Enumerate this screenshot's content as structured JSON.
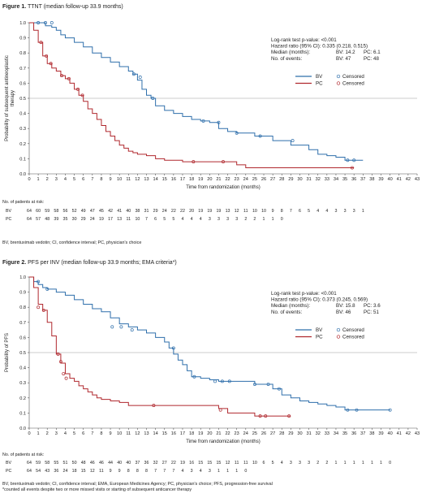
{
  "colors": {
    "BV": "#2f6fab",
    "PC": "#b0282e"
  },
  "chart_data": [
    {
      "type": "line",
      "figure_label": "Figure 1.",
      "title": " TTNT (median follow-up 33.9 months)",
      "xlabel": "Time from randomization (months)",
      "ylabel_lines": [
        "Probability of subsequent antineoplastic",
        "therapy"
      ],
      "xlim": [
        0,
        43
      ],
      "ylim": [
        0,
        1.0
      ],
      "x_ticks": [
        0,
        1,
        2,
        3,
        4,
        5,
        6,
        7,
        8,
        9,
        10,
        11,
        12,
        13,
        14,
        15,
        16,
        17,
        18,
        19,
        20,
        21,
        22,
        23,
        24,
        25,
        26,
        27,
        28,
        29,
        30,
        31,
        32,
        33,
        34,
        35,
        36,
        37,
        38,
        39,
        40,
        41,
        42,
        43
      ],
      "y_ticks": [
        0,
        0.1,
        0.2,
        0.3,
        0.4,
        0.5,
        0.6,
        0.7,
        0.8,
        0.9,
        1.0
      ],
      "reference_line_y": 0.5,
      "stats": {
        "logrank": "Log-rank test p-value: <0.001",
        "hr": "Hazard ratio (95% CI): 0.335 (0.218, 0.515)",
        "median_label": "Median (months):",
        "median_bv": "BV: 14.2",
        "median_pc": "PC: 6.1",
        "events_label": "No. of events:",
        "events_bv": "BV: 47",
        "events_pc": "PC: 48"
      },
      "legend": [
        {
          "series": "BV",
          "label": "BV",
          "censor_label": "Censored"
        },
        {
          "series": "PC",
          "label": "PC",
          "censor_label": "Censored"
        }
      ],
      "series": [
        {
          "name": "BV",
          "x": [
            0,
            1,
            1.8,
            2.5,
            3,
            3.5,
            4,
            5,
            6,
            7,
            8,
            9,
            10,
            11,
            11.5,
            12,
            12.5,
            13,
            13.5,
            14,
            15,
            16,
            17,
            18,
            19,
            20,
            21,
            22,
            23,
            24,
            25,
            26,
            27,
            28,
            29,
            30,
            31,
            32,
            33,
            34,
            35,
            36,
            37
          ],
          "y": [
            1.0,
            1.0,
            0.98,
            0.97,
            0.95,
            0.92,
            0.9,
            0.87,
            0.84,
            0.8,
            0.77,
            0.74,
            0.71,
            0.68,
            0.66,
            0.62,
            0.56,
            0.52,
            0.5,
            0.45,
            0.42,
            0.4,
            0.38,
            0.36,
            0.35,
            0.34,
            0.3,
            0.28,
            0.27,
            0.27,
            0.25,
            0.25,
            0.22,
            0.22,
            0.19,
            0.19,
            0.16,
            0.13,
            0.12,
            0.11,
            0.09,
            0.09,
            0.09
          ],
          "censored_x": [
            1,
            1.8,
            2.5,
            11.6,
            12.3,
            13.7,
            19.3,
            21,
            23,
            25.6,
            29.2,
            35.3,
            36
          ],
          "censored_y": [
            1.0,
            1.0,
            1.0,
            0.66,
            0.64,
            0.5,
            0.35,
            0.34,
            0.27,
            0.25,
            0.22,
            0.09,
            0.09
          ]
        },
        {
          "name": "PC",
          "x": [
            0,
            0.5,
            1,
            1.5,
            2,
            2.5,
            3,
            3.5,
            4,
            4.5,
            5,
            5.5,
            6,
            6.5,
            7,
            7.5,
            8,
            8.5,
            9,
            9.5,
            10,
            10.5,
            11,
            11.5,
            12,
            13,
            14,
            15,
            16,
            17,
            19,
            21,
            23,
            24,
            35,
            36
          ],
          "y": [
            1.0,
            0.95,
            0.87,
            0.78,
            0.73,
            0.7,
            0.68,
            0.65,
            0.63,
            0.6,
            0.56,
            0.52,
            0.48,
            0.43,
            0.4,
            0.36,
            0.32,
            0.28,
            0.25,
            0.22,
            0.19,
            0.17,
            0.15,
            0.14,
            0.13,
            0.12,
            0.1,
            0.09,
            0.09,
            0.08,
            0.08,
            0.08,
            0.06,
            0.04,
            0.04,
            0.04
          ],
          "censored_x": [
            1.3,
            1.9,
            2.4,
            3.6,
            4.4,
            5.4,
            5.9,
            18.2,
            21.5,
            35.8
          ],
          "censored_y": [
            0.87,
            0.78,
            0.73,
            0.65,
            0.63,
            0.56,
            0.52,
            0.08,
            0.08,
            0.04
          ]
        }
      ],
      "risk_table": {
        "header": "No. of patients at risk:",
        "rows": [
          {
            "label": "BV",
            "values": [
              "64",
              "60",
              "59",
              "58",
              "56",
              "52",
              "49",
              "47",
              "45",
              "42",
              "41",
              "40",
              "38",
              "31",
              "29",
              "24",
              "22",
              "22",
              "20",
              "19",
              "19",
              "19",
              "13",
              "12",
              "11",
              "10",
              "10",
              "9",
              "8",
              "7",
              "6",
              "5",
              "4",
              "4",
              "3",
              "3",
              "3",
              "1",
              ""
            ]
          },
          {
            "label": "PC",
            "values": [
              "64",
              "57",
              "48",
              "39",
              "35",
              "30",
              "29",
              "24",
              "19",
              "17",
              "13",
              "11",
              "10",
              "7",
              "6",
              "5",
              "5",
              "4",
              "4",
              "4",
              "3",
              "3",
              "3",
              "3",
              "2",
              "2",
              "1",
              "1",
              "0",
              "",
              "",
              "",
              "",
              "",
              "",
              "",
              "",
              "",
              ""
            ]
          }
        ]
      },
      "footnote_lines": [
        "BV, brentuximab vedotin; CI, confidence interval; PC, physician's choice"
      ]
    },
    {
      "type": "line",
      "figure_label": "Figure 2.",
      "title": " PFS per INV (median follow-up 33.9 months; EMA criteria*)",
      "xlabel": "Time from randomization (months)",
      "ylabel_lines": [
        "Probability of PFS"
      ],
      "xlim": [
        0,
        43
      ],
      "ylim": [
        0,
        1.0
      ],
      "x_ticks": [
        0,
        1,
        2,
        3,
        4,
        5,
        6,
        7,
        8,
        9,
        10,
        11,
        12,
        13,
        14,
        15,
        16,
        17,
        18,
        19,
        20,
        21,
        22,
        23,
        24,
        25,
        26,
        27,
        28,
        29,
        30,
        31,
        32,
        33,
        34,
        35,
        36,
        37,
        38,
        39,
        40,
        41,
        42,
        43
      ],
      "y_ticks": [
        0,
        0.1,
        0.2,
        0.3,
        0.4,
        0.5,
        0.6,
        0.7,
        0.8,
        0.9,
        1.0
      ],
      "reference_line_y": 0.5,
      "stats": {
        "logrank": "Log-rank test p-value: <0.001",
        "hr": "Hazard ratio (95% CI): 0.373 (0.245, 0.569)",
        "median_label": "Median (months):",
        "median_bv": "BV: 15.8",
        "median_pc": "PC: 3.6",
        "events_label": "No. of events:",
        "events_bv": "BV: 46",
        "events_pc": "PC: 51"
      },
      "legend": [
        {
          "series": "BV",
          "label": "BV",
          "censor_label": "Censored"
        },
        {
          "series": "PC",
          "label": "PC",
          "censor_label": "Censored"
        }
      ],
      "series": [
        {
          "name": "BV",
          "x": [
            0,
            0.5,
            1,
            1.5,
            2,
            3,
            4,
            5,
            6,
            7,
            8,
            9,
            10,
            11,
            12,
            13,
            14,
            15,
            15.5,
            16,
            16.5,
            17,
            17.5,
            18,
            19,
            20,
            21,
            22,
            25,
            27,
            28,
            29,
            30,
            31,
            32,
            33,
            34,
            35,
            36,
            40
          ],
          "y": [
            1.0,
            0.97,
            0.95,
            0.93,
            0.92,
            0.9,
            0.88,
            0.85,
            0.82,
            0.79,
            0.77,
            0.73,
            0.69,
            0.67,
            0.65,
            0.63,
            0.6,
            0.57,
            0.53,
            0.49,
            0.45,
            0.42,
            0.38,
            0.34,
            0.33,
            0.32,
            0.31,
            0.31,
            0.29,
            0.26,
            0.22,
            0.2,
            0.18,
            0.17,
            0.16,
            0.15,
            0.14,
            0.12,
            0.12,
            0.12
          ],
          "censored_x": [
            1,
            2,
            9.2,
            10.2,
            11.4,
            16,
            18.3,
            20.6,
            21.4,
            22.2,
            25,
            26.5,
            27.7,
            35.3,
            36.3,
            40
          ],
          "censored_y": [
            0.97,
            0.92,
            0.67,
            0.67,
            0.65,
            0.53,
            0.34,
            0.31,
            0.31,
            0.31,
            0.29,
            0.29,
            0.26,
            0.12,
            0.12,
            0.12
          ]
        },
        {
          "name": "PC",
          "x": [
            0,
            0.5,
            1,
            1.5,
            2,
            2.5,
            3,
            3.5,
            4,
            4.5,
            5,
            5.5,
            6,
            6.5,
            7,
            7.5,
            8,
            9,
            10,
            11,
            14,
            17,
            21,
            22,
            25,
            29
          ],
          "y": [
            1.0,
            0.93,
            0.82,
            0.78,
            0.7,
            0.61,
            0.49,
            0.43,
            0.36,
            0.33,
            0.31,
            0.28,
            0.26,
            0.24,
            0.22,
            0.2,
            0.19,
            0.18,
            0.17,
            0.15,
            0.15,
            0.15,
            0.13,
            0.1,
            0.08,
            0.08
          ],
          "censored_x": [
            1,
            1.6,
            3.2,
            3.5,
            3.8,
            4.1,
            13.8,
            21.2,
            25.6,
            26.2,
            28.8
          ],
          "censored_y": [
            0.8,
            0.78,
            0.49,
            0.44,
            0.36,
            0.33,
            0.15,
            0.12,
            0.08,
            0.08,
            0.08
          ]
        }
      ],
      "risk_table": {
        "header": "No. of patients at risk:",
        "rows": [
          {
            "label": "BV",
            "values": [
              "64",
              "59",
              "58",
              "55",
              "51",
              "50",
              "48",
              "46",
              "46",
              "44",
              "40",
              "40",
              "37",
              "36",
              "32",
              "27",
              "22",
              "19",
              "16",
              "15",
              "15",
              "15",
              "12",
              "11",
              "11",
              "10",
              "6",
              "5",
              "4",
              "3",
              "3",
              "3",
              "2",
              "2",
              "1",
              "1",
              "1",
              "1",
              "1",
              "1",
              "0"
            ]
          },
          {
            "label": "PC",
            "values": [
              "64",
              "54",
              "43",
              "36",
              "24",
              "18",
              "15",
              "12",
              "11",
              "9",
              "9",
              "8",
              "8",
              "8",
              "7",
              "7",
              "7",
              "4",
              "3",
              "4",
              "3",
              "1",
              "1",
              "1",
              "0"
            ]
          }
        ]
      },
      "footnote_lines": [
        "BV, brentuximab vedotin; CI, confidence interval; EMA, European Medicines Agency; PC, physician's choice; PFS, progression-free survival",
        "*counted all events despite two or more missed visits or starting of subsequent anticancer therapy"
      ]
    }
  ]
}
